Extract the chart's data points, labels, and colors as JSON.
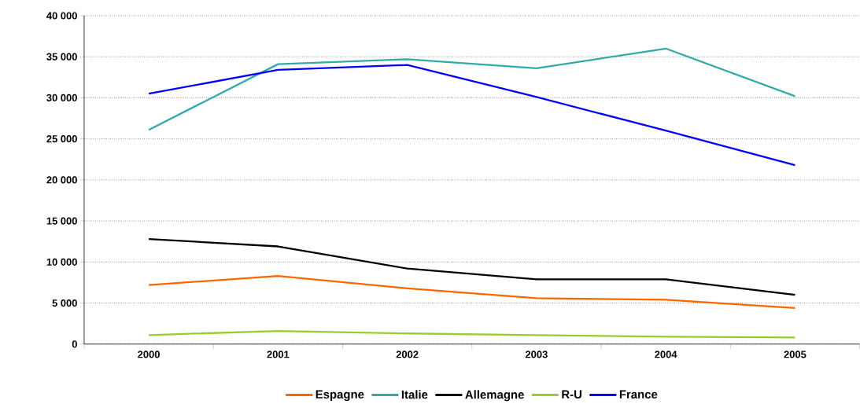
{
  "chart_data": {
    "type": "line",
    "categories": [
      "2000",
      "2001",
      "2002",
      "2003",
      "2004",
      "2005"
    ],
    "series": [
      {
        "name": "Espagne",
        "color": "#ff6600",
        "values": [
          7200,
          8300,
          6800,
          5600,
          5400,
          4400
        ]
      },
      {
        "name": "Italie",
        "color": "#33aaaa",
        "values": [
          26100,
          34100,
          34700,
          33600,
          36000,
          30200
        ]
      },
      {
        "name": "Allemagne",
        "color": "#000000",
        "values": [
          12800,
          11900,
          9200,
          7900,
          7900,
          6000
        ]
      },
      {
        "name": "R-U",
        "color": "#99cc33",
        "values": [
          1100,
          1600,
          1300,
          1100,
          900,
          800
        ]
      },
      {
        "name": "France",
        "color": "#0000ff",
        "values": [
          30500,
          33400,
          34000,
          30100,
          26000,
          21800
        ]
      }
    ],
    "ylim": [
      0,
      40000
    ],
    "yticks": [
      {
        "value": 0,
        "label": "0"
      },
      {
        "value": 5000,
        "label": "5 000"
      },
      {
        "value": 10000,
        "label": "10 000"
      },
      {
        "value": 15000,
        "label": "15 000"
      },
      {
        "value": 20000,
        "label": "20 000"
      },
      {
        "value": 25000,
        "label": "25 000"
      },
      {
        "value": 30000,
        "label": "30 000"
      },
      {
        "value": 35000,
        "label": "35 000"
      },
      {
        "value": 40000,
        "label": "40 000"
      }
    ],
    "grid": "y",
    "legend": "bottom",
    "marker": "none",
    "line_style": "solid"
  }
}
